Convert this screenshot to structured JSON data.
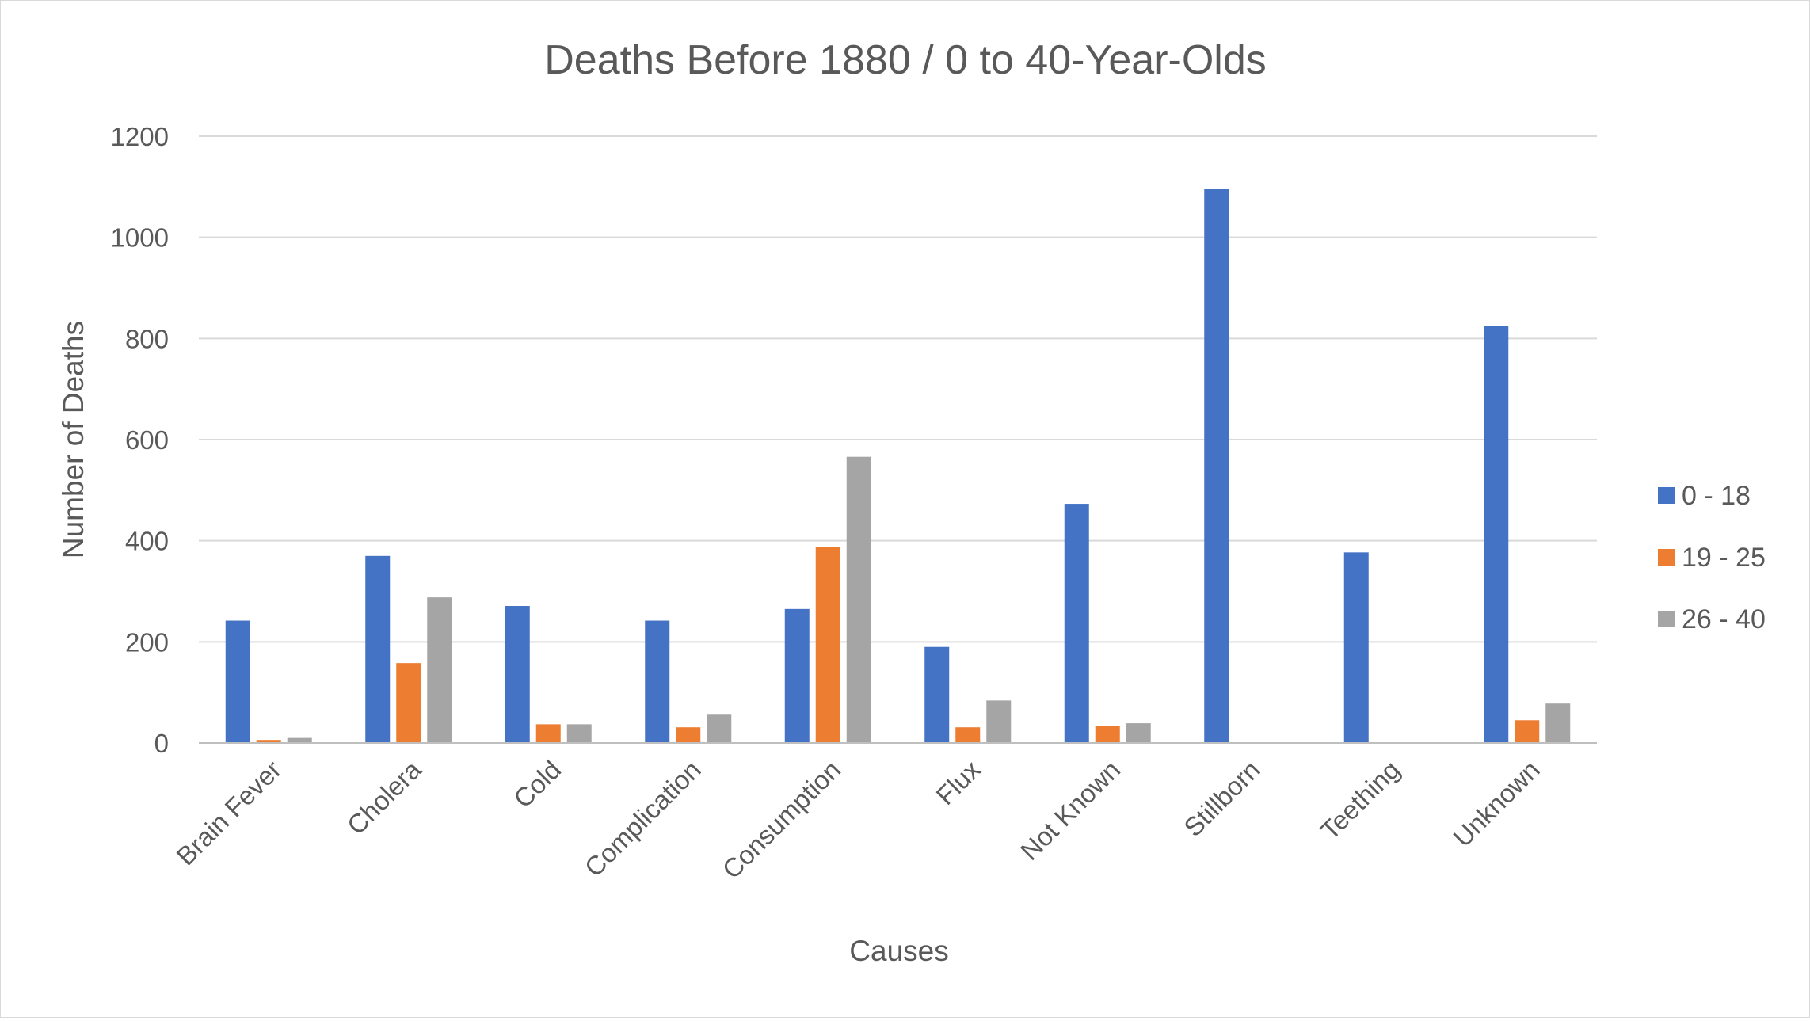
{
  "chart_data": {
    "type": "bar",
    "title": "Deaths Before 1880 / 0 to 40-Year-Olds",
    "xlabel": "Causes",
    "ylabel": "Number of Deaths",
    "ylim": [
      0,
      1200
    ],
    "yticks": [
      "0",
      "200",
      "400",
      "600",
      "800",
      "1000",
      "1200"
    ],
    "grid": true,
    "legend_position": "right",
    "categories": [
      "Brain Fever",
      "Cholera",
      "Cold",
      "Complication",
      "Consumption",
      "Flux",
      "Not Known",
      "Stillborn",
      "Teething",
      "Unknown"
    ],
    "series": [
      {
        "name": "0 - 18",
        "color": "#4472C4",
        "values": [
          242,
          370,
          271,
          242,
          265,
          190,
          473,
          1096,
          377,
          825
        ]
      },
      {
        "name": "19 - 25",
        "color": "#ED7D31",
        "values": [
          6,
          158,
          37,
          31,
          387,
          31,
          33,
          0,
          0,
          45
        ]
      },
      {
        "name": "26 - 40",
        "color": "#A5A5A5",
        "values": [
          10,
          288,
          37,
          56,
          566,
          84,
          39,
          0,
          0,
          78
        ]
      }
    ]
  }
}
